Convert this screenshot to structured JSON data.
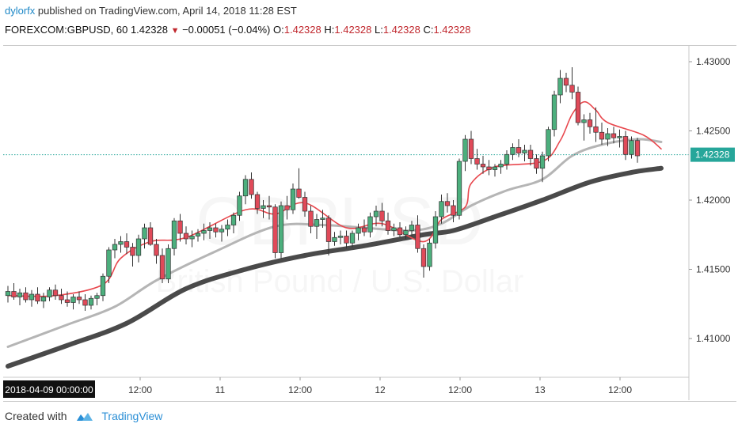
{
  "header": {
    "user": "dylorfx",
    "published_text": " published on TradingView.com, April 14, 2018 11:28 EST",
    "symbol": "FOREXCOM:GBPUSD, 60",
    "last_price": "1.42328",
    "change_arrow": "▼",
    "change": "−0.00051 (−0.04%)",
    "o_label": "O:",
    "o_value": "1.42328",
    "h_label": "H:",
    "h_value": "1.42328",
    "l_label": "L:",
    "l_value": "1.42328",
    "c_label": "C:",
    "c_value": "1.42328"
  },
  "footer": {
    "created_with": "Created with",
    "brand": "TradingView"
  },
  "watermark": {
    "symbol": "GBPUSD",
    "description": "British Pound / U.S. Dollar"
  },
  "colors": {
    "up": "#4caf7d",
    "down": "#e04a59",
    "ema_fast": "#e8474d",
    "ema_mid": "#b5b5b5",
    "ema_slow": "#4a4a4a",
    "price_line": "#26a69a",
    "price_tag": "#26a69a"
  },
  "chart_data": {
    "type": "candlestick",
    "y_axis": {
      "ticks": [
        "1.43000",
        "1.42500",
        "1.42000",
        "1.41500",
        "1.41000"
      ],
      "range": [
        1.4072,
        1.4312
      ]
    },
    "x_axis": {
      "range_start_label": "2018-04-09 00:00:00",
      "ticks": [
        "12:00",
        "11",
        "12:00",
        "12",
        "12:00",
        "13",
        "12:00"
      ]
    },
    "current_price": "1.42328",
    "candles": [
      {
        "o": 1.4131,
        "h": 1.4138,
        "l": 1.4126,
        "c": 1.4134
      },
      {
        "o": 1.4134,
        "h": 1.414,
        "l": 1.4128,
        "c": 1.413
      },
      {
        "o": 1.413,
        "h": 1.4136,
        "l": 1.4124,
        "c": 1.4133
      },
      {
        "o": 1.4133,
        "h": 1.4137,
        "l": 1.4126,
        "c": 1.4128
      },
      {
        "o": 1.4128,
        "h": 1.4135,
        "l": 1.4123,
        "c": 1.4132
      },
      {
        "o": 1.4132,
        "h": 1.4137,
        "l": 1.4125,
        "c": 1.4127
      },
      {
        "o": 1.4127,
        "h": 1.4133,
        "l": 1.4122,
        "c": 1.413
      },
      {
        "o": 1.413,
        "h": 1.4137,
        "l": 1.4127,
        "c": 1.4135
      },
      {
        "o": 1.4135,
        "h": 1.4139,
        "l": 1.4128,
        "c": 1.4131
      },
      {
        "o": 1.4131,
        "h": 1.4136,
        "l": 1.4125,
        "c": 1.4128
      },
      {
        "o": 1.4128,
        "h": 1.4134,
        "l": 1.4123,
        "c": 1.4126
      },
      {
        "o": 1.4126,
        "h": 1.4132,
        "l": 1.4121,
        "c": 1.413
      },
      {
        "o": 1.413,
        "h": 1.4134,
        "l": 1.4125,
        "c": 1.4128
      },
      {
        "o": 1.4128,
        "h": 1.4132,
        "l": 1.412,
        "c": 1.4124
      },
      {
        "o": 1.4124,
        "h": 1.4131,
        "l": 1.4121,
        "c": 1.4129
      },
      {
        "o": 1.4129,
        "h": 1.4133,
        "l": 1.4124,
        "c": 1.4131
      },
      {
        "o": 1.4131,
        "h": 1.4147,
        "l": 1.4127,
        "c": 1.4145
      },
      {
        "o": 1.4145,
        "h": 1.4166,
        "l": 1.414,
        "c": 1.4164
      },
      {
        "o": 1.4164,
        "h": 1.4172,
        "l": 1.4158,
        "c": 1.4168
      },
      {
        "o": 1.4168,
        "h": 1.4174,
        "l": 1.4162,
        "c": 1.417
      },
      {
        "o": 1.417,
        "h": 1.4176,
        "l": 1.4161,
        "c": 1.4166
      },
      {
        "o": 1.4166,
        "h": 1.4169,
        "l": 1.4152,
        "c": 1.416
      },
      {
        "o": 1.416,
        "h": 1.4175,
        "l": 1.4155,
        "c": 1.4172
      },
      {
        "o": 1.4172,
        "h": 1.4183,
        "l": 1.4165,
        "c": 1.418
      },
      {
        "o": 1.418,
        "h": 1.4184,
        "l": 1.4167,
        "c": 1.4168
      },
      {
        "o": 1.4168,
        "h": 1.4172,
        "l": 1.4154,
        "c": 1.416
      },
      {
        "o": 1.416,
        "h": 1.4165,
        "l": 1.414,
        "c": 1.4143
      },
      {
        "o": 1.4143,
        "h": 1.4168,
        "l": 1.414,
        "c": 1.4165
      },
      {
        "o": 1.4165,
        "h": 1.4187,
        "l": 1.416,
        "c": 1.4185
      },
      {
        "o": 1.4185,
        "h": 1.419,
        "l": 1.417,
        "c": 1.4176
      },
      {
        "o": 1.4176,
        "h": 1.4181,
        "l": 1.4168,
        "c": 1.4172
      },
      {
        "o": 1.4172,
        "h": 1.4178,
        "l": 1.4166,
        "c": 1.4174
      },
      {
        "o": 1.4174,
        "h": 1.4179,
        "l": 1.417,
        "c": 1.4176
      },
      {
        "o": 1.4176,
        "h": 1.4183,
        "l": 1.4171,
        "c": 1.4178
      },
      {
        "o": 1.4178,
        "h": 1.4184,
        "l": 1.4172,
        "c": 1.418
      },
      {
        "o": 1.418,
        "h": 1.4183,
        "l": 1.4173,
        "c": 1.4177
      },
      {
        "o": 1.4177,
        "h": 1.4182,
        "l": 1.417,
        "c": 1.4179
      },
      {
        "o": 1.4179,
        "h": 1.4186,
        "l": 1.4174,
        "c": 1.4182
      },
      {
        "o": 1.4182,
        "h": 1.4191,
        "l": 1.4176,
        "c": 1.4189
      },
      {
        "o": 1.4189,
        "h": 1.4206,
        "l": 1.4185,
        "c": 1.4203
      },
      {
        "o": 1.4203,
        "h": 1.4218,
        "l": 1.4197,
        "c": 1.4215
      },
      {
        "o": 1.4215,
        "h": 1.422,
        "l": 1.4201,
        "c": 1.4204
      },
      {
        "o": 1.4204,
        "h": 1.4206,
        "l": 1.419,
        "c": 1.4194
      },
      {
        "o": 1.4194,
        "h": 1.42,
        "l": 1.4187,
        "c": 1.4196
      },
      {
        "o": 1.4196,
        "h": 1.4203,
        "l": 1.4186,
        "c": 1.4195
      },
      {
        "o": 1.4195,
        "h": 1.4197,
        "l": 1.4158,
        "c": 1.4162
      },
      {
        "o": 1.4162,
        "h": 1.4199,
        "l": 1.4158,
        "c": 1.4196
      },
      {
        "o": 1.4196,
        "h": 1.4203,
        "l": 1.4186,
        "c": 1.4193
      },
      {
        "o": 1.4193,
        "h": 1.4212,
        "l": 1.419,
        "c": 1.4208
      },
      {
        "o": 1.4208,
        "h": 1.4223,
        "l": 1.4201,
        "c": 1.4202
      },
      {
        "o": 1.4202,
        "h": 1.4206,
        "l": 1.4188,
        "c": 1.4192
      },
      {
        "o": 1.4192,
        "h": 1.4196,
        "l": 1.4176,
        "c": 1.4181
      },
      {
        "o": 1.4181,
        "h": 1.419,
        "l": 1.4172,
        "c": 1.4186
      },
      {
        "o": 1.4186,
        "h": 1.4193,
        "l": 1.418,
        "c": 1.4187
      },
      {
        "o": 1.4187,
        "h": 1.4189,
        "l": 1.416,
        "c": 1.417
      },
      {
        "o": 1.417,
        "h": 1.4177,
        "l": 1.4167,
        "c": 1.4173
      },
      {
        "o": 1.4173,
        "h": 1.4178,
        "l": 1.4168,
        "c": 1.4174
      },
      {
        "o": 1.4174,
        "h": 1.4178,
        "l": 1.4165,
        "c": 1.4169
      },
      {
        "o": 1.4169,
        "h": 1.4178,
        "l": 1.4166,
        "c": 1.4176
      },
      {
        "o": 1.4176,
        "h": 1.4183,
        "l": 1.4171,
        "c": 1.418
      },
      {
        "o": 1.418,
        "h": 1.4186,
        "l": 1.4174,
        "c": 1.4177
      },
      {
        "o": 1.4177,
        "h": 1.4191,
        "l": 1.4173,
        "c": 1.4188
      },
      {
        "o": 1.4188,
        "h": 1.4196,
        "l": 1.4181,
        "c": 1.4192
      },
      {
        "o": 1.4192,
        "h": 1.4198,
        "l": 1.4181,
        "c": 1.4185
      },
      {
        "o": 1.4185,
        "h": 1.4191,
        "l": 1.4175,
        "c": 1.4178
      },
      {
        "o": 1.4178,
        "h": 1.4183,
        "l": 1.4174,
        "c": 1.418
      },
      {
        "o": 1.418,
        "h": 1.4184,
        "l": 1.4173,
        "c": 1.4175
      },
      {
        "o": 1.4175,
        "h": 1.4181,
        "l": 1.4172,
        "c": 1.4178
      },
      {
        "o": 1.4178,
        "h": 1.4185,
        "l": 1.4174,
        "c": 1.4182
      },
      {
        "o": 1.4182,
        "h": 1.4189,
        "l": 1.4162,
        "c": 1.4165
      },
      {
        "o": 1.4165,
        "h": 1.4168,
        "l": 1.4144,
        "c": 1.4152
      },
      {
        "o": 1.4152,
        "h": 1.4172,
        "l": 1.4149,
        "c": 1.4169
      },
      {
        "o": 1.4169,
        "h": 1.4192,
        "l": 1.4165,
        "c": 1.4188
      },
      {
        "o": 1.4188,
        "h": 1.4204,
        "l": 1.4183,
        "c": 1.4199
      },
      {
        "o": 1.4199,
        "h": 1.4205,
        "l": 1.4191,
        "c": 1.4196
      },
      {
        "o": 1.4196,
        "h": 1.42,
        "l": 1.4184,
        "c": 1.4189
      },
      {
        "o": 1.4189,
        "h": 1.423,
        "l": 1.4186,
        "c": 1.4228
      },
      {
        "o": 1.4228,
        "h": 1.4247,
        "l": 1.4221,
        "c": 1.4244
      },
      {
        "o": 1.4244,
        "h": 1.425,
        "l": 1.4226,
        "c": 1.423
      },
      {
        "o": 1.423,
        "h": 1.4237,
        "l": 1.4222,
        "c": 1.4226
      },
      {
        "o": 1.4226,
        "h": 1.4232,
        "l": 1.4219,
        "c": 1.4224
      },
      {
        "o": 1.4224,
        "h": 1.4229,
        "l": 1.4218,
        "c": 1.4222
      },
      {
        "o": 1.4222,
        "h": 1.4226,
        "l": 1.4217,
        "c": 1.4224
      },
      {
        "o": 1.4224,
        "h": 1.4229,
        "l": 1.4219,
        "c": 1.4226
      },
      {
        "o": 1.4226,
        "h": 1.4236,
        "l": 1.4222,
        "c": 1.4233
      },
      {
        "o": 1.4233,
        "h": 1.4241,
        "l": 1.4229,
        "c": 1.4238
      },
      {
        "o": 1.4238,
        "h": 1.4244,
        "l": 1.4231,
        "c": 1.4234
      },
      {
        "o": 1.4234,
        "h": 1.424,
        "l": 1.4228,
        "c": 1.4236
      },
      {
        "o": 1.4236,
        "h": 1.424,
        "l": 1.4225,
        "c": 1.423
      },
      {
        "o": 1.423,
        "h": 1.4233,
        "l": 1.4219,
        "c": 1.4223
      },
      {
        "o": 1.4223,
        "h": 1.4235,
        "l": 1.4213,
        "c": 1.4232
      },
      {
        "o": 1.4232,
        "h": 1.4253,
        "l": 1.4228,
        "c": 1.4251
      },
      {
        "o": 1.4251,
        "h": 1.4279,
        "l": 1.4246,
        "c": 1.4276
      },
      {
        "o": 1.4276,
        "h": 1.4294,
        "l": 1.427,
        "c": 1.4288
      },
      {
        "o": 1.4288,
        "h": 1.4292,
        "l": 1.4278,
        "c": 1.4283
      },
      {
        "o": 1.4283,
        "h": 1.4296,
        "l": 1.4273,
        "c": 1.4278
      },
      {
        "o": 1.4278,
        "h": 1.4282,
        "l": 1.4254,
        "c": 1.4256
      },
      {
        "o": 1.4256,
        "h": 1.4262,
        "l": 1.4243,
        "c": 1.4258
      },
      {
        "o": 1.4258,
        "h": 1.4263,
        "l": 1.4248,
        "c": 1.4253
      },
      {
        "o": 1.4253,
        "h": 1.4267,
        "l": 1.4242,
        "c": 1.4249
      },
      {
        "o": 1.4249,
        "h": 1.4256,
        "l": 1.424,
        "c": 1.4244
      },
      {
        "o": 1.4244,
        "h": 1.4252,
        "l": 1.4239,
        "c": 1.4248
      },
      {
        "o": 1.4248,
        "h": 1.4253,
        "l": 1.4241,
        "c": 1.4245
      },
      {
        "o": 1.4245,
        "h": 1.4251,
        "l": 1.4238,
        "c": 1.4246
      },
      {
        "o": 1.4246,
        "h": 1.425,
        "l": 1.4229,
        "c": 1.4233
      },
      {
        "o": 1.4233,
        "h": 1.4246,
        "l": 1.423,
        "c": 1.4243
      },
      {
        "o": 1.4243,
        "h": 1.4245,
        "l": 1.4227,
        "c": 1.4232
      }
    ],
    "ema_fast": [
      [
        0,
        1.4131
      ],
      [
        8,
        1.4131
      ],
      [
        16,
        1.4139
      ],
      [
        19,
        1.4158
      ],
      [
        24,
        1.417
      ],
      [
        30,
        1.4173
      ],
      [
        40,
        1.4193
      ],
      [
        45,
        1.419
      ],
      [
        50,
        1.4198
      ],
      [
        57,
        1.418
      ],
      [
        63,
        1.4183
      ],
      [
        70,
        1.417
      ],
      [
        73,
        1.4186
      ],
      [
        77,
        1.4195
      ],
      [
        78,
        1.4212
      ],
      [
        82,
        1.4224
      ],
      [
        90,
        1.4228
      ],
      [
        93,
        1.4243
      ],
      [
        95,
        1.4262
      ],
      [
        97,
        1.4271
      ],
      [
        99,
        1.4265
      ],
      [
        101,
        1.4256
      ],
      [
        107,
        1.4247
      ],
      [
        110,
        1.4237
      ]
    ],
    "ema_mid": [
      [
        0,
        1.4094
      ],
      [
        10,
        1.411
      ],
      [
        18,
        1.4123
      ],
      [
        25,
        1.4142
      ],
      [
        35,
        1.4163
      ],
      [
        45,
        1.4181
      ],
      [
        53,
        1.4182
      ],
      [
        60,
        1.418
      ],
      [
        68,
        1.4178
      ],
      [
        73,
        1.4183
      ],
      [
        78,
        1.4196
      ],
      [
        84,
        1.4207
      ],
      [
        90,
        1.4215
      ],
      [
        95,
        1.4232
      ],
      [
        100,
        1.424
      ],
      [
        106,
        1.4244
      ],
      [
        110,
        1.4242
      ]
    ],
    "ema_slow": [
      [
        0,
        1.408
      ],
      [
        10,
        1.4095
      ],
      [
        20,
        1.4111
      ],
      [
        30,
        1.4136
      ],
      [
        40,
        1.415
      ],
      [
        50,
        1.416
      ],
      [
        60,
        1.4167
      ],
      [
        70,
        1.4175
      ],
      [
        75,
        1.4178
      ],
      [
        82,
        1.4188
      ],
      [
        90,
        1.42
      ],
      [
        98,
        1.4213
      ],
      [
        105,
        1.422
      ],
      [
        110,
        1.4223
      ]
    ]
  }
}
